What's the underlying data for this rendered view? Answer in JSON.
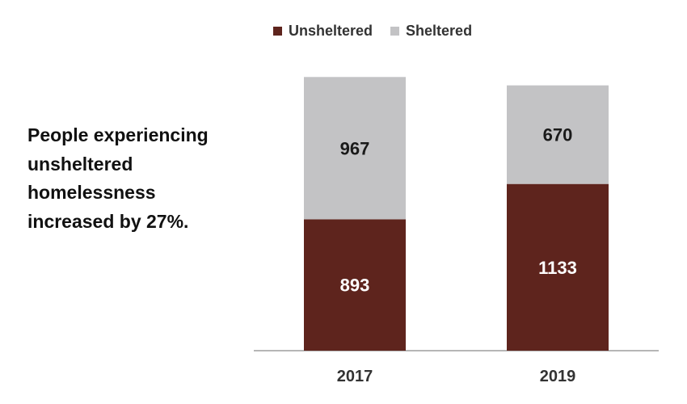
{
  "chart_data": {
    "type": "bar",
    "stacked": true,
    "categories": [
      "2017",
      "2019"
    ],
    "series": [
      {
        "name": "Unsheltered",
        "values": [
          893,
          1133
        ],
        "color": "#5e241d",
        "label_color": "#ffffff"
      },
      {
        "name": "Sheltered",
        "values": [
          967,
          670
        ],
        "color": "#c3c3c5",
        "label_color": "#1a1a1a"
      }
    ],
    "legend_position": "top",
    "grid": false,
    "ylim": [
      0,
      1900
    ],
    "annotation": "People experiencing\nunsheltered\nhomelessness\nincreased by 27%."
  }
}
